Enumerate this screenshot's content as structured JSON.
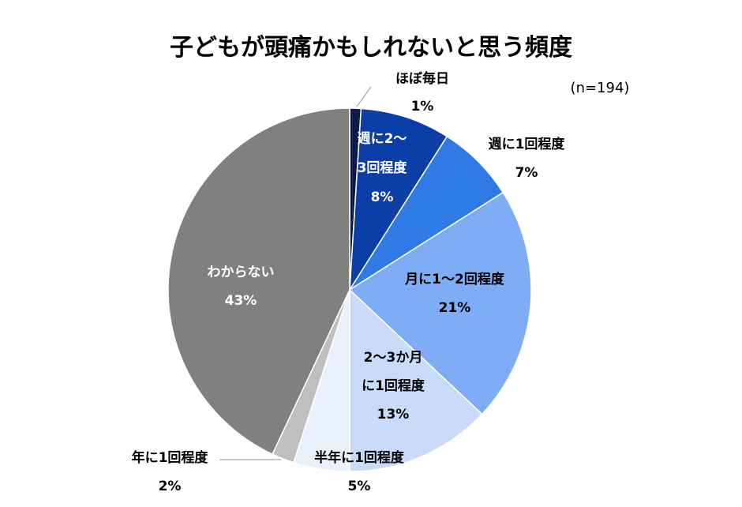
{
  "chart_data": {
    "type": "pie",
    "title": "子どもが頭痛かもしれないと思う頻度",
    "note": "(n=194)",
    "slices": [
      {
        "label": "ほぼ毎日",
        "value": 1,
        "value_label": "1%",
        "color": "#0d1b4a",
        "label_color": "#000000"
      },
      {
        "label": "週に2～3回程度",
        "value": 8,
        "value_label": "8%",
        "color": "#0b3ea6",
        "label_color": "#ffffff"
      },
      {
        "label": "週に1回程度",
        "value": 7,
        "value_label": "7%",
        "color": "#2f7ae5",
        "label_color": "#000000"
      },
      {
        "label": "月に1～2回程度",
        "value": 21,
        "value_label": "21%",
        "color": "#7fadf5",
        "label_color": "#000000"
      },
      {
        "label": "2～3か月に1回程度",
        "value": 13,
        "value_label": "13%",
        "color": "#c9dbf8",
        "label_color": "#000000"
      },
      {
        "label": "半年に1回程度",
        "value": 5,
        "value_label": "5%",
        "color": "#e9f1fc",
        "label_color": "#000000"
      },
      {
        "label": "年に1回程度",
        "value": 2,
        "value_label": "2%",
        "color": "#bfbfbf",
        "label_color": "#000000"
      },
      {
        "label": "わからない",
        "value": 43,
        "value_label": "43%",
        "color": "#808080",
        "label_color": "#ffffff"
      }
    ]
  }
}
